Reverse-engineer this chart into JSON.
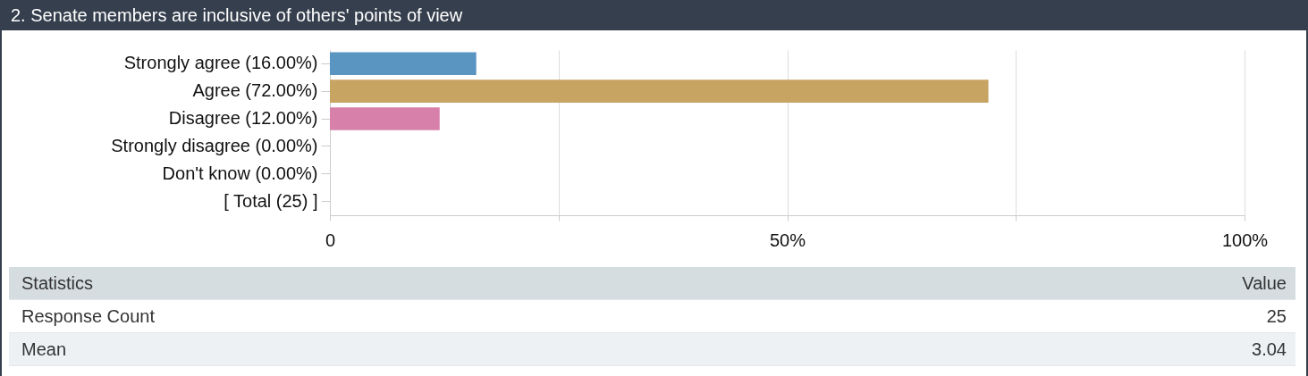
{
  "chart_data": {
    "type": "bar",
    "orientation": "horizontal",
    "title": "2. Senate members are inclusive of others' points of view",
    "categories": [
      "Strongly agree (16.00%)",
      "Agree (72.00%)",
      "Disagree (12.00%)",
      "Strongly disagree (0.00%)",
      "Don't know (0.00%)",
      "[ Total (25) ]"
    ],
    "values": [
      16,
      72,
      12,
      0,
      0,
      null
    ],
    "colors": [
      "#5a94c1",
      "#c8a463",
      "#d780aa",
      null,
      null,
      null
    ],
    "xlim": [
      0,
      100
    ],
    "xticks": [
      0,
      {
        "value": 25,
        "label": null
      },
      {
        "value": 50,
        "label": "50%"
      },
      {
        "value": 75,
        "label": null
      },
      {
        "value": 100,
        "label": "100%"
      }
    ],
    "grid": "x",
    "annotations": [
      "Statistics",
      "Value",
      "Response Count",
      "25",
      "Mean",
      "3.04"
    ]
  }
}
